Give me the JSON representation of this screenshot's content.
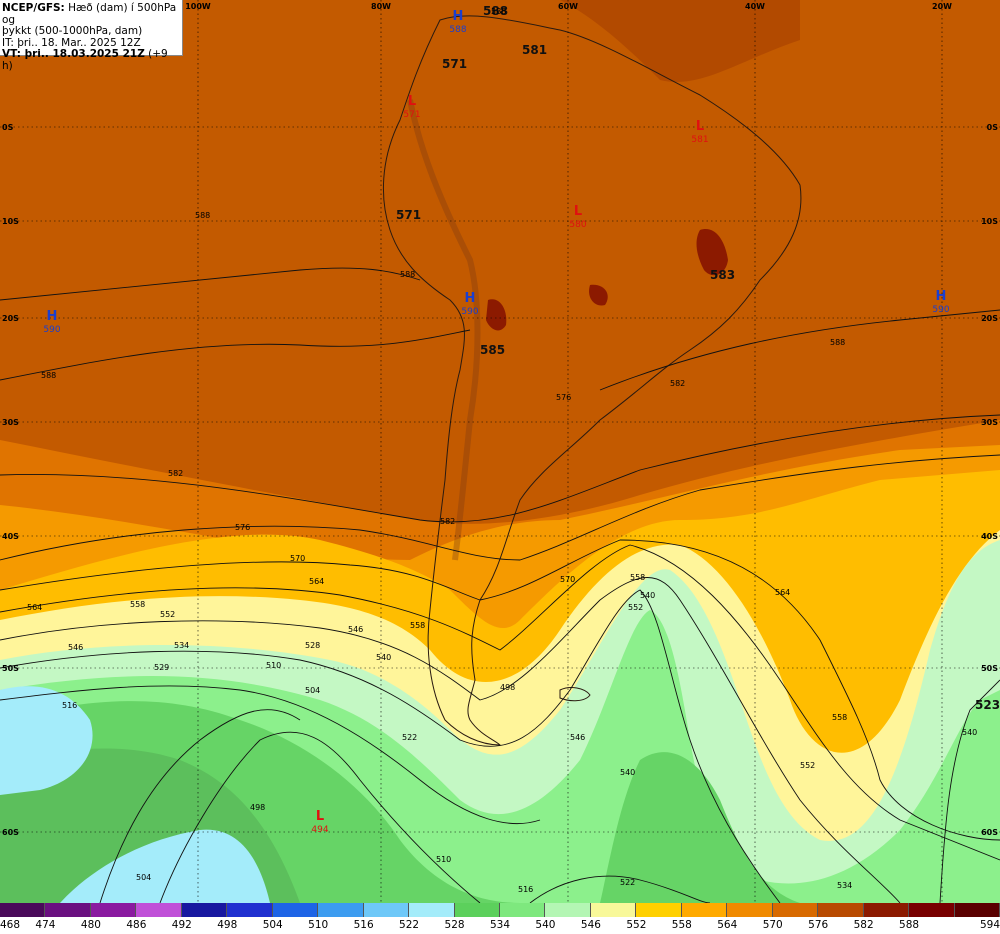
{
  "info": {
    "line1_bold": "NCEP/GFS:",
    "line1_rest": " Hæð (dam) í 500hPa og",
    "line2": "þykkt (500-1000hPa, dam)",
    "line3": "IT: þri.. 18. Mar.. 2025 12Z",
    "line4_bold": "VT: þri.. 18.03.2025 21Z",
    "line4_rest": " (+9 h)"
  },
  "top_ticks": [
    "100W",
    "80W",
    "60W",
    "40W",
    "20W"
  ],
  "left_ticks": [
    "0S",
    "10S",
    "20S",
    "30S",
    "40S",
    "50S",
    "60S"
  ],
  "right_ticks": [
    "0S",
    "10S",
    "20S",
    "30S",
    "40S",
    "50S",
    "60S"
  ],
  "pressure_centers": [
    {
      "type": "H",
      "value": "588",
      "color": "#1a3fd0"
    },
    {
      "type": "H",
      "value": "590",
      "color": "#1a3fd0"
    },
    {
      "type": "H",
      "value": "590",
      "color": "#1a3fd0"
    },
    {
      "type": "H",
      "value": "590",
      "color": "#1a3fd0"
    },
    {
      "type": "L",
      "value": "571",
      "color": "#e01010"
    },
    {
      "type": "L",
      "value": "581",
      "color": "#e01010"
    },
    {
      "type": "L",
      "value": "580",
      "color": "#e01010"
    },
    {
      "type": "L",
      "value": "494",
      "color": "#e01010"
    }
  ],
  "big_labels": [
    "588",
    "571",
    "581",
    "571",
    "583",
    "585",
    "523"
  ],
  "contour_labels": [
    "588",
    "588",
    "588",
    "588",
    "588",
    "582",
    "582",
    "582",
    "576",
    "576",
    "570",
    "570",
    "564",
    "564",
    "564",
    "558",
    "558",
    "558",
    "552",
    "552",
    "546",
    "546",
    "540",
    "540",
    "540",
    "534",
    "534",
    "529",
    "528",
    "522",
    "522",
    "516",
    "516",
    "510",
    "510",
    "504",
    "504",
    "498",
    "498",
    "546",
    "540",
    "552",
    "558"
  ],
  "legend": {
    "colors": [
      "#4a0a5a",
      "#6a1080",
      "#8a1aa0",
      "#c050d8",
      "#1818a0",
      "#2030d0",
      "#1e64e6",
      "#3c9cf0",
      "#6ec8f8",
      "#a4ecfa",
      "#5cd05c",
      "#7ee87e",
      "#b4f6b4",
      "#f8f89a",
      "#ffd000",
      "#ffaa00",
      "#f08a00",
      "#d86a00",
      "#b84a00",
      "#8c1a00",
      "#780000",
      "#5a0000"
    ],
    "labels": [
      "468",
      "474",
      "480",
      "486",
      "492",
      "498",
      "504",
      "510",
      "516",
      "522",
      "528",
      "534",
      "540",
      "546",
      "552",
      "558",
      "564",
      "570",
      "576",
      "582",
      "588",
      "594"
    ]
  }
}
